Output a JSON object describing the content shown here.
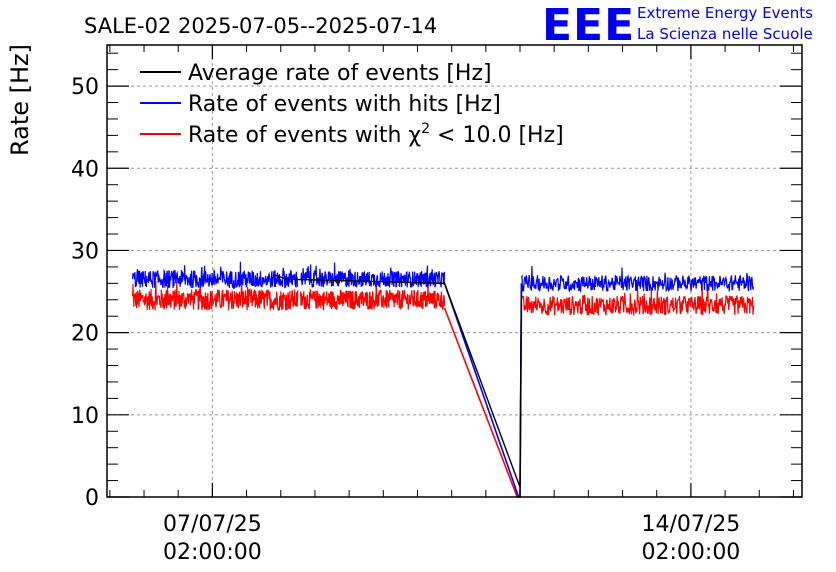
{
  "chart_data": {
    "type": "line",
    "title": "SALE-02 2025-07-05--2025-07-14",
    "ylabel": "Rate [Hz]",
    "xlabel": "",
    "ylim": [
      0,
      55
    ],
    "yticks": [
      0,
      10,
      20,
      30,
      40,
      50
    ],
    "xticks": [
      {
        "line1": "07/07/25",
        "line2": "02:00:00",
        "x": "2025-07-07T02:00:00"
      },
      {
        "line1": "14/07/25",
        "line2": "02:00:00",
        "x": "2025-07-14T02:00:00"
      }
    ],
    "xlim": [
      "2025-07-05T13:00:00",
      "2025-07-15T17:00:00"
    ],
    "grid": true,
    "legend_position": "top-left",
    "logo": {
      "big": "EEE",
      "line1": "Extreme Energy Events",
      "line2": "La Scienza nelle Scuole"
    },
    "series": [
      {
        "name": "Average rate of events [Hz]",
        "color": "#000000",
        "points": [
          [
            "2025-07-08T00:00:00",
            27.0
          ],
          [
            "2025-07-08T04:00:00",
            26.5
          ],
          [
            "2025-07-10T11:30:00",
            26.0
          ],
          [
            "2025-07-11T14:00:00",
            1.2
          ],
          [
            "2025-07-11T14:30:00",
            25.0
          ]
        ]
      },
      {
        "name": "Rate of events with hits [Hz]",
        "color": "#0000ff",
        "segments": [
          {
            "start": "2025-07-05T22:00:00",
            "end": "2025-07-08T08:00:00",
            "mean": 26.5,
            "amp": 1.1
          },
          {
            "start": "2025-07-08T09:00:00",
            "end": "2025-07-10T11:30:00",
            "mean": 26.5,
            "amp": 1.0
          },
          {
            "start": "2025-07-11T14:30:00",
            "end": "2025-07-15T00:00:00",
            "mean": 26.0,
            "amp": 1.0
          }
        ],
        "gap_points": [
          [
            "2025-07-10T11:30:00",
            26.0
          ],
          [
            "2025-07-11T13:30:00",
            0
          ],
          [
            "2025-07-11T14:00:00",
            0
          ],
          [
            "2025-07-11T14:30:00",
            26.0
          ]
        ]
      },
      {
        "name": "Rate of events with χ² < 10.0 [Hz]",
        "color": "#ff0000",
        "segments": [
          {
            "start": "2025-07-05T22:00:00",
            "end": "2025-07-08T08:00:00",
            "mean": 24.0,
            "amp": 1.3
          },
          {
            "start": "2025-07-08T09:00:00",
            "end": "2025-07-10T11:30:00",
            "mean": 24.0,
            "amp": 1.2
          },
          {
            "start": "2025-07-11T14:30:00",
            "end": "2025-07-15T00:00:00",
            "mean": 23.3,
            "amp": 1.2
          }
        ],
        "gap_points": [
          [
            "2025-07-10T11:30:00",
            23.0
          ],
          [
            "2025-07-11T13:00:00",
            0
          ],
          [
            "2025-07-11T14:00:00",
            0
          ],
          [
            "2025-07-11T14:30:00",
            23.5
          ]
        ]
      }
    ],
    "legend": [
      {
        "label_pre": "Average rate of events [Hz]",
        "sup": "",
        "label_post": "",
        "color": "#000000"
      },
      {
        "label_pre": "Rate of events with hits [Hz]",
        "sup": "",
        "label_post": "",
        "color": "#0000ff"
      },
      {
        "label_pre": "Rate of events with χ",
        "sup": "2",
        "label_post": " < 10.0 [Hz]",
        "color": "#ff0000"
      }
    ]
  }
}
